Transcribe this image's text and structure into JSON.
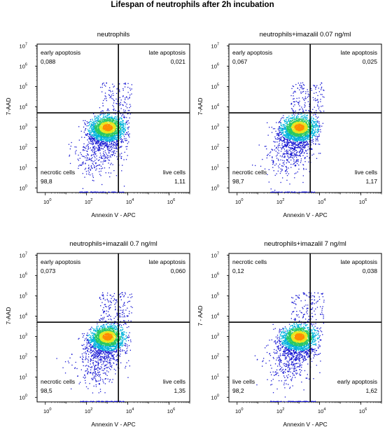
{
  "title": "Lifespan of neutrophils after 2h incubation",
  "chart_data": [
    {
      "type": "scatter",
      "title": "neutrophils",
      "xlabel": "Annexin V - APC",
      "ylabel": "7-AAD",
      "x_scale": "log",
      "y_scale": "log",
      "xlim": [
        0.4,
        10000000
      ],
      "ylim": [
        0.6,
        12000000
      ],
      "x_ticks": [
        "10^0",
        "10^2",
        "10^4",
        "10^6"
      ],
      "y_ticks": [
        "10^0",
        "10^1",
        "10^2",
        "10^3",
        "10^4",
        "10^5",
        "10^6",
        "10^7"
      ],
      "gate": {
        "x": 3500,
        "y": 5000
      },
      "quadrants": [
        {
          "position": "top-left",
          "label": "early apoptosis",
          "value": "0,088"
        },
        {
          "position": "top-right",
          "label": "late apoptosis",
          "value": "0,021"
        },
        {
          "position": "bottom-left",
          "label": "necrotic cells",
          "value": "98,8"
        },
        {
          "position": "bottom-right",
          "label": "live cells",
          "value": "1,11"
        }
      ],
      "grid": false
    },
    {
      "type": "scatter",
      "title": "neutrophils+imazalil 0.07 ng/ml",
      "xlabel": "Annexin V - APC",
      "ylabel": "7-AAD",
      "x_scale": "log",
      "y_scale": "log",
      "xlim": [
        0.4,
        10000000
      ],
      "ylim": [
        0.6,
        12000000
      ],
      "x_ticks": [
        "10^0",
        "10^2",
        "10^4",
        "10^6"
      ],
      "y_ticks": [
        "10^0",
        "10^1",
        "10^2",
        "10^3",
        "10^4",
        "10^5",
        "10^6",
        "10^7"
      ],
      "gate": {
        "x": 3500,
        "y": 5000
      },
      "quadrants": [
        {
          "position": "top-left",
          "label": "early apoptosis",
          "value": "0,067"
        },
        {
          "position": "top-right",
          "label": "late apoptosis",
          "value": "0,025"
        },
        {
          "position": "bottom-left",
          "label": "necrotic cells",
          "value": "98,7"
        },
        {
          "position": "bottom-right",
          "label": "live cells",
          "value": "1,17"
        }
      ],
      "grid": false
    },
    {
      "type": "scatter",
      "title": "neutrophils+imazalil 0.7 ng/ml",
      "xlabel": "Annexin V - APC",
      "ylabel": "7-AAD",
      "x_scale": "log",
      "y_scale": "log",
      "xlim": [
        0.4,
        10000000
      ],
      "ylim": [
        0.6,
        12000000
      ],
      "x_ticks": [
        "10^0",
        "10^2",
        "10^4",
        "10^6"
      ],
      "y_ticks": [
        "10^0",
        "10^1",
        "10^2",
        "10^3",
        "10^4",
        "10^5",
        "10^6",
        "10^7"
      ],
      "gate": {
        "x": 3500,
        "y": 5000
      },
      "quadrants": [
        {
          "position": "top-left",
          "label": "early apoptosis",
          "value": "0,073"
        },
        {
          "position": "top-right",
          "label": "late apoptosis",
          "value": "0,060"
        },
        {
          "position": "bottom-left",
          "label": "necrotic cells",
          "value": "98,5"
        },
        {
          "position": "bottom-right",
          "label": "live cells",
          "value": "1,35"
        }
      ],
      "grid": false
    },
    {
      "type": "scatter",
      "title": "neutrophils+imazalil 7 ng/ml",
      "xlabel": "Annexin V - APC",
      "ylabel": "7 - AAD",
      "x_scale": "log",
      "y_scale": "log",
      "xlim": [
        0.4,
        10000000
      ],
      "ylim": [
        0.6,
        12000000
      ],
      "x_ticks": [
        "10^0",
        "10^2",
        "10^4",
        "10^6"
      ],
      "y_ticks": [
        "10^0",
        "10^1",
        "10^2",
        "10^3",
        "10^4",
        "10^5",
        "10^6",
        "10^7"
      ],
      "gate": {
        "x": 3500,
        "y": 5000
      },
      "quadrants": [
        {
          "position": "top-left",
          "label": "necrotic cells",
          "value": "0,12"
        },
        {
          "position": "top-right",
          "label": "late apoptosis",
          "value": "0,038"
        },
        {
          "position": "bottom-left",
          "label": "live cells",
          "value": "98,2"
        },
        {
          "position": "bottom-right",
          "label": "early apoptosis",
          "value": "1,62"
        }
      ],
      "grid": false
    }
  ],
  "colors": {
    "low": "#1414d2",
    "mid_low": "#00b4dc",
    "mid": "#28c864",
    "mid_high": "#e6e61e",
    "high": "#ff8c00"
  }
}
